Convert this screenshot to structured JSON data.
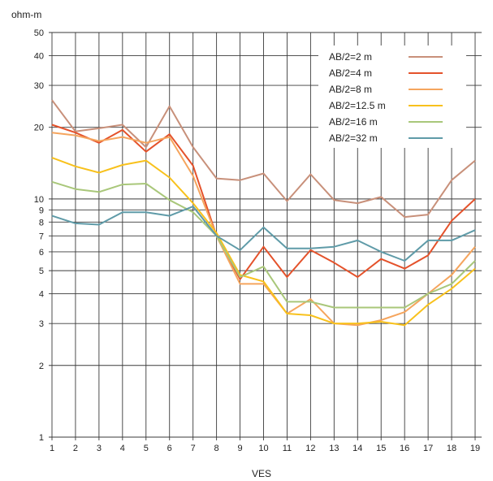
{
  "chart_data": {
    "type": "line",
    "title": "",
    "xlabel": "VES",
    "ylabel": "ohm-m",
    "yscale": "log",
    "ylim": [
      1,
      50
    ],
    "xlim": [
      1,
      19
    ],
    "grid": true,
    "legend_position": "top-right",
    "x": [
      1,
      2,
      3,
      4,
      5,
      6,
      7,
      8,
      9,
      10,
      11,
      12,
      13,
      14,
      15,
      16,
      17,
      18,
      19
    ],
    "y_ticks": [
      1,
      2,
      3,
      4,
      5,
      6,
      7,
      8,
      9,
      10,
      20,
      30,
      40,
      50
    ],
    "series": [
      {
        "name": "AB/2=2 m",
        "color": "#c8907a",
        "values": [
          26,
          19.2,
          19.8,
          20.5,
          16.5,
          24.5,
          16.5,
          12.2,
          12.0,
          12.8,
          9.8,
          12.7,
          9.9,
          9.6,
          10.2,
          8.4,
          8.6,
          12.0,
          14.5
        ]
      },
      {
        "name": "AB/2=4 m",
        "color": "#e4522b",
        "values": [
          20.5,
          19.0,
          17.2,
          19.5,
          15.8,
          18.7,
          13.8,
          7.0,
          4.6,
          6.3,
          4.7,
          6.1,
          5.4,
          4.7,
          5.6,
          5.1,
          5.8,
          8.1,
          10.0
        ]
      },
      {
        "name": "AB/2=8 m",
        "color": "#f5a55e",
        "values": [
          19.0,
          18.5,
          17.5,
          18.2,
          17.2,
          18.2,
          12.5,
          7.0,
          4.4,
          4.4,
          3.3,
          3.8,
          3.0,
          2.95,
          3.1,
          3.35,
          4.0,
          4.8,
          6.3
        ]
      },
      {
        "name": "AB/2=12.5 m",
        "color": "#f8c11c",
        "values": [
          14.9,
          13.7,
          12.9,
          13.9,
          14.5,
          12.3,
          9.6,
          7.2,
          4.8,
          4.5,
          3.3,
          3.25,
          3.0,
          3.0,
          3.05,
          2.95,
          3.6,
          4.2,
          5.1
        ]
      },
      {
        "name": "AB/2=16 m",
        "color": "#a9c77a",
        "values": [
          11.8,
          11.0,
          10.7,
          11.5,
          11.6,
          9.9,
          8.8,
          7.0,
          4.7,
          5.2,
          3.7,
          3.7,
          3.5,
          3.5,
          3.5,
          3.5,
          4.0,
          4.4,
          5.5
        ]
      },
      {
        "name": "AB/2=32 m",
        "color": "#5f9ba8",
        "values": [
          8.5,
          7.9,
          7.8,
          8.8,
          8.8,
          8.5,
          9.3,
          7.0,
          6.1,
          7.6,
          6.2,
          6.2,
          6.3,
          6.7,
          6.0,
          5.5,
          6.7,
          6.7,
          7.4
        ]
      }
    ]
  }
}
